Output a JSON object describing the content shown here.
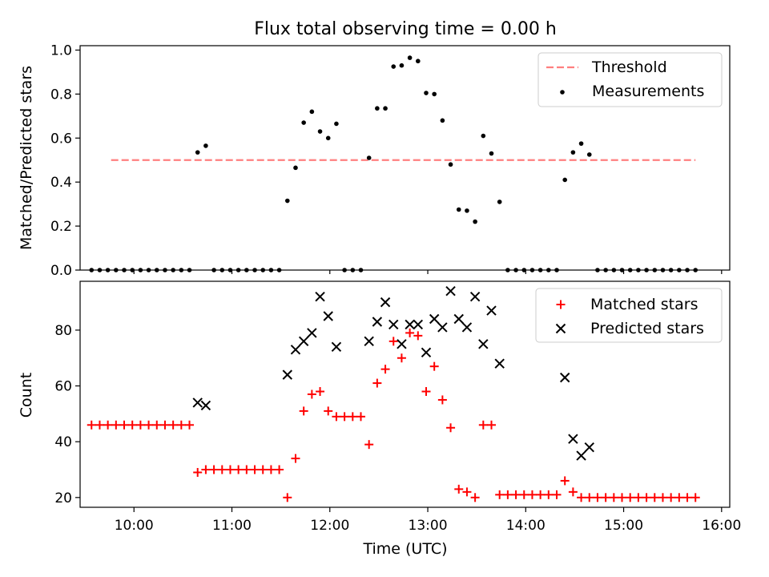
{
  "figure": {
    "title": "Flux total observing time = 0.00 h",
    "xlabel": "Time (UTC)"
  },
  "chart_data": [
    {
      "type": "scatter",
      "ylabel": "Matched/Predicted stars",
      "xlim": [
        "09:27",
        "16:05"
      ],
      "ylim": [
        0,
        1.02
      ],
      "yticks": [
        "0.0",
        "0.2",
        "0.4",
        "0.6",
        "0.8",
        "1.0"
      ],
      "legend_position": "upper right",
      "threshold": {
        "name": "Threshold",
        "y": 0.5,
        "x_start": "09:46",
        "x_end": "15:44",
        "color": "#ff7f7f",
        "style": "dashed"
      },
      "series": [
        {
          "name": "Measurements",
          "marker": "dot",
          "color": "#000000",
          "points": [
            [
              "09:34",
              0
            ],
            [
              "09:39",
              0
            ],
            [
              "09:44",
              0
            ],
            [
              "09:49",
              0
            ],
            [
              "09:54",
              0
            ],
            [
              "09:59",
              0
            ],
            [
              "10:04",
              0
            ],
            [
              "10:09",
              0
            ],
            [
              "10:14",
              0
            ],
            [
              "10:19",
              0
            ],
            [
              "10:24",
              0
            ],
            [
              "10:29",
              0
            ],
            [
              "10:34",
              0
            ],
            [
              "10:39",
              0.535
            ],
            [
              "10:44",
              0.565
            ],
            [
              "10:49",
              0
            ],
            [
              "10:54",
              0
            ],
            [
              "10:59",
              0
            ],
            [
              "11:04",
              0
            ],
            [
              "11:09",
              0
            ],
            [
              "11:14",
              0
            ],
            [
              "11:19",
              0
            ],
            [
              "11:24",
              0
            ],
            [
              "11:29",
              0
            ],
            [
              "11:34",
              0.315
            ],
            [
              "11:39",
              0.465
            ],
            [
              "11:44",
              0.67
            ],
            [
              "11:49",
              0.72
            ],
            [
              "11:54",
              0.63
            ],
            [
              "11:59",
              0.6
            ],
            [
              "12:04",
              0.665
            ],
            [
              "12:09",
              0
            ],
            [
              "12:14",
              0
            ],
            [
              "12:19",
              0
            ],
            [
              "12:24",
              0.51
            ],
            [
              "12:29",
              0.735
            ],
            [
              "12:34",
              0.735
            ],
            [
              "12:39",
              0.925
            ],
            [
              "12:44",
              0.93
            ],
            [
              "12:49",
              0.965
            ],
            [
              "12:54",
              0.95
            ],
            [
              "12:59",
              0.805
            ],
            [
              "13:04",
              0.8
            ],
            [
              "13:09",
              0.68
            ],
            [
              "13:14",
              0.48
            ],
            [
              "13:19",
              0.275
            ],
            [
              "13:24",
              0.27
            ],
            [
              "13:29",
              0.22
            ],
            [
              "13:34",
              0.61
            ],
            [
              "13:39",
              0.53
            ],
            [
              "13:44",
              0.31
            ],
            [
              "13:49",
              0
            ],
            [
              "13:54",
              0
            ],
            [
              "13:59",
              0
            ],
            [
              "14:04",
              0
            ],
            [
              "14:09",
              0
            ],
            [
              "14:14",
              0
            ],
            [
              "14:19",
              0
            ],
            [
              "14:24",
              0.41
            ],
            [
              "14:29",
              0.535
            ],
            [
              "14:34",
              0.575
            ],
            [
              "14:39",
              0.525
            ],
            [
              "14:44",
              0
            ],
            [
              "14:49",
              0
            ],
            [
              "14:54",
              0
            ],
            [
              "14:59",
              0
            ],
            [
              "15:04",
              0
            ],
            [
              "15:09",
              0
            ],
            [
              "15:14",
              0
            ],
            [
              "15:19",
              0
            ],
            [
              "15:24",
              0
            ],
            [
              "15:29",
              0
            ],
            [
              "15:34",
              0
            ],
            [
              "15:39",
              0
            ],
            [
              "15:44",
              0
            ]
          ]
        }
      ]
    },
    {
      "type": "scatter",
      "ylabel": "Count",
      "xlim": [
        "09:27",
        "16:05"
      ],
      "ylim": [
        16.5,
        97.5
      ],
      "yticks": [
        "20",
        "40",
        "60",
        "80"
      ],
      "xticks": [
        "10:00",
        "11:00",
        "12:00",
        "13:00",
        "14:00",
        "15:00",
        "16:00"
      ],
      "legend_position": "upper right",
      "series": [
        {
          "name": "Matched stars",
          "marker": "plus",
          "color": "#ff0000",
          "points": [
            [
              "09:34",
              46
            ],
            [
              "09:39",
              46
            ],
            [
              "09:44",
              46
            ],
            [
              "09:49",
              46
            ],
            [
              "09:54",
              46
            ],
            [
              "09:59",
              46
            ],
            [
              "10:04",
              46
            ],
            [
              "10:09",
              46
            ],
            [
              "10:14",
              46
            ],
            [
              "10:19",
              46
            ],
            [
              "10:24",
              46
            ],
            [
              "10:29",
              46
            ],
            [
              "10:34",
              46
            ],
            [
              "10:39",
              29
            ],
            [
              "10:44",
              30
            ],
            [
              "10:49",
              30
            ],
            [
              "10:54",
              30
            ],
            [
              "10:59",
              30
            ],
            [
              "11:04",
              30
            ],
            [
              "11:09",
              30
            ],
            [
              "11:14",
              30
            ],
            [
              "11:19",
              30
            ],
            [
              "11:24",
              30
            ],
            [
              "11:29",
              30
            ],
            [
              "11:34",
              20
            ],
            [
              "11:39",
              34
            ],
            [
              "11:44",
              51
            ],
            [
              "11:49",
              57
            ],
            [
              "11:54",
              58
            ],
            [
              "11:59",
              51
            ],
            [
              "12:04",
              49
            ],
            [
              "12:09",
              49
            ],
            [
              "12:14",
              49
            ],
            [
              "12:19",
              49
            ],
            [
              "12:24",
              39
            ],
            [
              "12:29",
              61
            ],
            [
              "12:34",
              66
            ],
            [
              "12:39",
              76
            ],
            [
              "12:44",
              70
            ],
            [
              "12:49",
              79
            ],
            [
              "12:54",
              78
            ],
            [
              "12:59",
              58
            ],
            [
              "13:04",
              67
            ],
            [
              "13:09",
              55
            ],
            [
              "13:14",
              45
            ],
            [
              "13:19",
              23
            ],
            [
              "13:24",
              22
            ],
            [
              "13:29",
              20
            ],
            [
              "13:34",
              46
            ],
            [
              "13:39",
              46
            ],
            [
              "13:44",
              21
            ],
            [
              "13:49",
              21
            ],
            [
              "13:54",
              21
            ],
            [
              "13:59",
              21
            ],
            [
              "14:04",
              21
            ],
            [
              "14:09",
              21
            ],
            [
              "14:14",
              21
            ],
            [
              "14:19",
              21
            ],
            [
              "14:24",
              26
            ],
            [
              "14:29",
              22
            ],
            [
              "14:34",
              20
            ],
            [
              "14:39",
              20
            ],
            [
              "14:44",
              20
            ],
            [
              "14:49",
              20
            ],
            [
              "14:54",
              20
            ],
            [
              "14:59",
              20
            ],
            [
              "15:04",
              20
            ],
            [
              "15:09",
              20
            ],
            [
              "15:14",
              20
            ],
            [
              "15:19",
              20
            ],
            [
              "15:24",
              20
            ],
            [
              "15:29",
              20
            ],
            [
              "15:34",
              20
            ],
            [
              "15:39",
              20
            ],
            [
              "15:44",
              20
            ]
          ]
        },
        {
          "name": "Predicted stars",
          "marker": "x",
          "color": "#000000",
          "points": [
            [
              "10:39",
              54
            ],
            [
              "10:44",
              53
            ],
            [
              "11:34",
              64
            ],
            [
              "11:39",
              73
            ],
            [
              "11:44",
              76
            ],
            [
              "11:49",
              79
            ],
            [
              "11:54",
              92
            ],
            [
              "11:59",
              85
            ],
            [
              "12:04",
              74
            ],
            [
              "12:24",
              76
            ],
            [
              "12:29",
              83
            ],
            [
              "12:34",
              90
            ],
            [
              "12:39",
              82
            ],
            [
              "12:44",
              75
            ],
            [
              "12:49",
              82
            ],
            [
              "12:54",
              82
            ],
            [
              "12:59",
              72
            ],
            [
              "13:04",
              84
            ],
            [
              "13:09",
              81
            ],
            [
              "13:14",
              94
            ],
            [
              "13:19",
              84
            ],
            [
              "13:24",
              81
            ],
            [
              "13:29",
              92
            ],
            [
              "13:34",
              75
            ],
            [
              "13:39",
              87
            ],
            [
              "13:44",
              68
            ],
            [
              "14:24",
              63
            ],
            [
              "14:29",
              41
            ],
            [
              "14:34",
              35
            ],
            [
              "14:39",
              38
            ]
          ]
        }
      ]
    }
  ]
}
